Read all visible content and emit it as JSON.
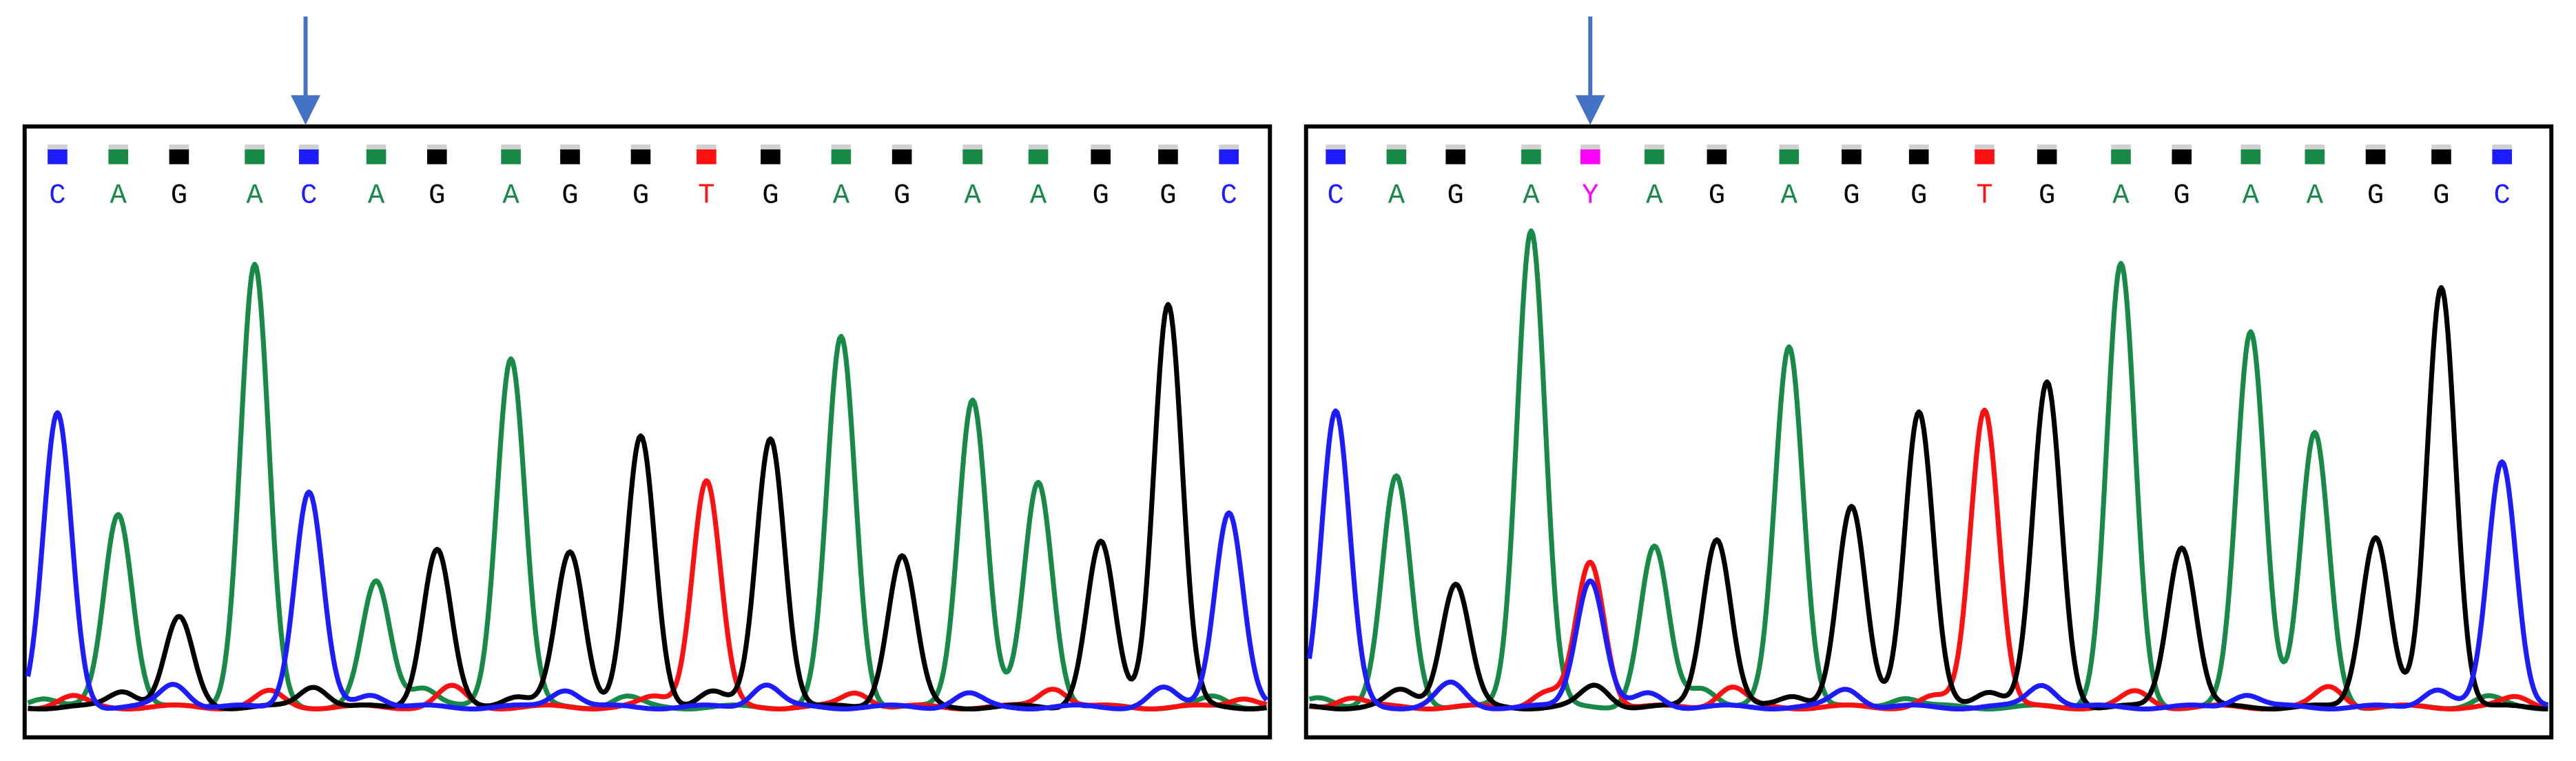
{
  "panels": [
    {
      "bases": [
        "C",
        "A",
        "G",
        "A",
        "C",
        "A",
        "G",
        "A",
        "G",
        "G",
        "T",
        "G",
        "A",
        "G",
        "A",
        "A",
        "G",
        "G",
        "C"
      ]
    },
    {
      "bases": [
        "C",
        "A",
        "G",
        "A",
        "Y",
        "A",
        "G",
        "A",
        "G",
        "G",
        "T",
        "G",
        "A",
        "G",
        "A",
        "A",
        "G",
        "G",
        "C"
      ]
    }
  ]
}
